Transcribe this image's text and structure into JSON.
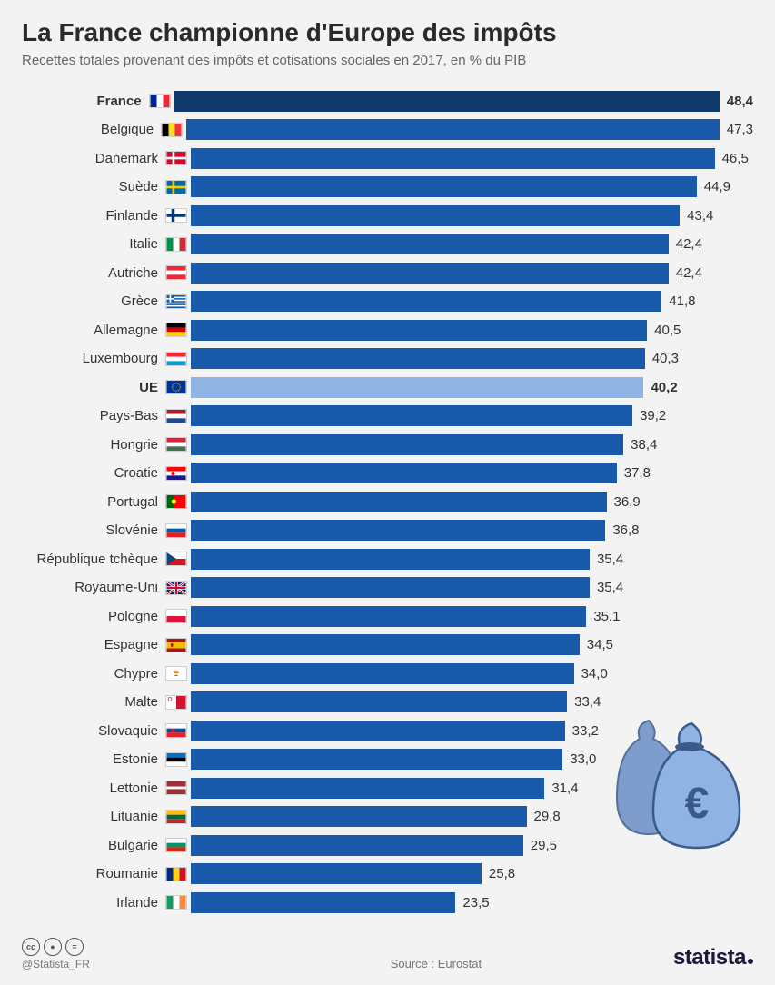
{
  "title": "La France championne d'Europe des impôts",
  "subtitle": "Recettes totales provenant des impôts et cotisations sociales en 2017, en % du PIB",
  "chart": {
    "max_value": 50,
    "bar_color": "#1859a9",
    "bar_color_highlight": "#0f3a6b",
    "bar_color_light": "#8fb4e3",
    "text_color": "#333333",
    "background": "#f3f3f3",
    "rows": [
      {
        "label": "France",
        "value": "48,4",
        "num": 48.4,
        "bold": true,
        "color": "#0f3a6b",
        "flag": {
          "type": "v3",
          "c": [
            "#002395",
            "#ffffff",
            "#ed2939"
          ]
        }
      },
      {
        "label": "Belgique",
        "value": "47,3",
        "num": 47.3,
        "color": "#1859a9",
        "flag": {
          "type": "v3",
          "c": [
            "#000000",
            "#fdda24",
            "#ef3340"
          ]
        }
      },
      {
        "label": "Danemark",
        "value": "46,5",
        "num": 46.5,
        "color": "#1859a9",
        "flag": {
          "type": "dk"
        }
      },
      {
        "label": "Suède",
        "value": "44,9",
        "num": 44.9,
        "color": "#1859a9",
        "flag": {
          "type": "se"
        }
      },
      {
        "label": "Finlande",
        "value": "43,4",
        "num": 43.4,
        "color": "#1859a9",
        "flag": {
          "type": "fi"
        }
      },
      {
        "label": "Italie",
        "value": "42,4",
        "num": 42.4,
        "color": "#1859a9",
        "flag": {
          "type": "v3",
          "c": [
            "#009246",
            "#ffffff",
            "#ce2b37"
          ]
        }
      },
      {
        "label": "Autriche",
        "value": "42,4",
        "num": 42.4,
        "color": "#1859a9",
        "flag": {
          "type": "h3",
          "c": [
            "#ed2939",
            "#ffffff",
            "#ed2939"
          ]
        }
      },
      {
        "label": "Grèce",
        "value": "41,8",
        "num": 41.8,
        "color": "#1859a9",
        "flag": {
          "type": "gr"
        }
      },
      {
        "label": "Allemagne",
        "value": "40,5",
        "num": 40.5,
        "color": "#1859a9",
        "flag": {
          "type": "h3",
          "c": [
            "#000000",
            "#dd0000",
            "#ffce00"
          ]
        }
      },
      {
        "label": "Luxembourg",
        "value": "40,3",
        "num": 40.3,
        "color": "#1859a9",
        "flag": {
          "type": "h3",
          "c": [
            "#ed2939",
            "#ffffff",
            "#00a1de"
          ]
        }
      },
      {
        "label": "UE",
        "value": "40,2",
        "num": 40.2,
        "bold": true,
        "color": "#8fb4e3",
        "flag": {
          "type": "eu"
        }
      },
      {
        "label": "Pays-Bas",
        "value": "39,2",
        "num": 39.2,
        "color": "#1859a9",
        "flag": {
          "type": "h3",
          "c": [
            "#ae1c28",
            "#ffffff",
            "#21468b"
          ]
        }
      },
      {
        "label": "Hongrie",
        "value": "38,4",
        "num": 38.4,
        "color": "#1859a9",
        "flag": {
          "type": "h3",
          "c": [
            "#cd2a3e",
            "#ffffff",
            "#436f4d"
          ]
        }
      },
      {
        "label": "Croatie",
        "value": "37,8",
        "num": 37.8,
        "color": "#1859a9",
        "flag": {
          "type": "h3e",
          "c": [
            "#ff0000",
            "#ffffff",
            "#171796"
          ],
          "e": "#ff0000"
        }
      },
      {
        "label": "Portugal",
        "value": "36,9",
        "num": 36.9,
        "color": "#1859a9",
        "flag": {
          "type": "pt"
        }
      },
      {
        "label": "Slovénie",
        "value": "36,8",
        "num": 36.8,
        "color": "#1859a9",
        "flag": {
          "type": "h3e",
          "c": [
            "#ffffff",
            "#005da4",
            "#ed1c24"
          ],
          "e": "#005da4"
        }
      },
      {
        "label": "République tchèque",
        "value": "35,4",
        "num": 35.4,
        "color": "#1859a9",
        "flag": {
          "type": "cz"
        }
      },
      {
        "label": "Royaume-Uni",
        "value": "35,4",
        "num": 35.4,
        "color": "#1859a9",
        "flag": {
          "type": "uk"
        }
      },
      {
        "label": "Pologne",
        "value": "35,1",
        "num": 35.1,
        "color": "#1859a9",
        "flag": {
          "type": "h2",
          "c": [
            "#ffffff",
            "#dc143c"
          ]
        }
      },
      {
        "label": "Espagne",
        "value": "34,5",
        "num": 34.5,
        "color": "#1859a9",
        "flag": {
          "type": "es"
        }
      },
      {
        "label": "Chypre",
        "value": "34,0",
        "num": 34.0,
        "color": "#1859a9",
        "flag": {
          "type": "cy"
        }
      },
      {
        "label": "Malte",
        "value": "33,4",
        "num": 33.4,
        "color": "#1859a9",
        "flag": {
          "type": "mt"
        }
      },
      {
        "label": "Slovaquie",
        "value": "33,2",
        "num": 33.2,
        "color": "#1859a9",
        "flag": {
          "type": "h3e",
          "c": [
            "#ffffff",
            "#0b4ea2",
            "#ee1c25"
          ],
          "e": "#ee1c25"
        }
      },
      {
        "label": "Estonie",
        "value": "33,0",
        "num": 33.0,
        "color": "#1859a9",
        "flag": {
          "type": "h3",
          "c": [
            "#0072ce",
            "#000000",
            "#ffffff"
          ]
        }
      },
      {
        "label": "Lettonie",
        "value": "31,4",
        "num": 31.4,
        "color": "#1859a9",
        "flag": {
          "type": "lv"
        }
      },
      {
        "label": "Lituanie",
        "value": "29,8",
        "num": 29.8,
        "color": "#1859a9",
        "flag": {
          "type": "h3",
          "c": [
            "#fdb913",
            "#006a44",
            "#c1272d"
          ]
        }
      },
      {
        "label": "Bulgarie",
        "value": "29,5",
        "num": 29.5,
        "color": "#1859a9",
        "flag": {
          "type": "h3",
          "c": [
            "#ffffff",
            "#00966e",
            "#d62612"
          ]
        }
      },
      {
        "label": "Roumanie",
        "value": "25,8",
        "num": 25.8,
        "color": "#1859a9",
        "flag": {
          "type": "v3",
          "c": [
            "#002b7f",
            "#fcd116",
            "#ce1126"
          ]
        }
      },
      {
        "label": "Irlande",
        "value": "23,5",
        "num": 23.5,
        "color": "#1859a9",
        "flag": {
          "type": "v3",
          "c": [
            "#169b62",
            "#ffffff",
            "#ff883e"
          ]
        }
      }
    ]
  },
  "footer": {
    "handle": "@Statista_FR",
    "source": "Source : Eurostat",
    "brand": "statista"
  }
}
